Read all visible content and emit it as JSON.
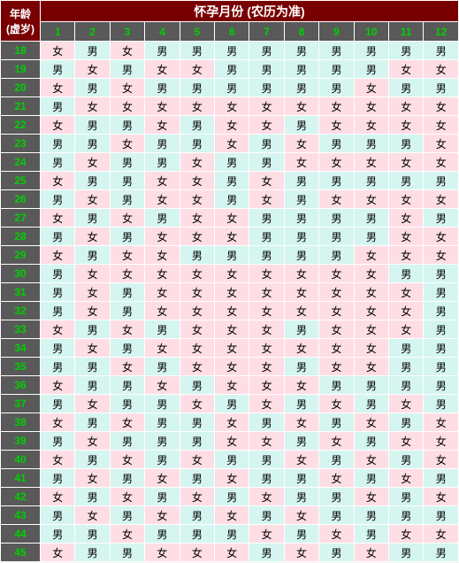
{
  "header": {
    "corner_line1": "年龄",
    "corner_line2": "(虚岁)",
    "top_title": "怀孕月份 (农历为准)"
  },
  "months": [
    "1",
    "2",
    "3",
    "4",
    "5",
    "6",
    "7",
    "8",
    "9",
    "10",
    "11",
    "12"
  ],
  "ages": [
    "18",
    "19",
    "20",
    "21",
    "22",
    "23",
    "24",
    "25",
    "26",
    "27",
    "28",
    "29",
    "30",
    "31",
    "32",
    "33",
    "34",
    "35",
    "36",
    "37",
    "38",
    "39",
    "40",
    "41",
    "42",
    "43",
    "44",
    "45"
  ],
  "label_female": "女",
  "label_male": "男",
  "colors": {
    "header_bg": "#790000",
    "header_fg": "#ffffff",
    "side_bg": "#595959",
    "side_fg": "#00d000",
    "female_bg": "#ffdde5",
    "male_bg": "#d5f5f0",
    "border": "#ffffff"
  },
  "grid": [
    [
      "女",
      "男",
      "女",
      "男",
      "男",
      "男",
      "男",
      "男",
      "男",
      "男",
      "男",
      "男"
    ],
    [
      "男",
      "女",
      "男",
      "女",
      "女",
      "男",
      "男",
      "男",
      "男",
      "男",
      "女",
      "女"
    ],
    [
      "女",
      "男",
      "女",
      "男",
      "男",
      "男",
      "男",
      "男",
      "男",
      "女",
      "男",
      "男"
    ],
    [
      "男",
      "女",
      "女",
      "女",
      "女",
      "女",
      "女",
      "女",
      "女",
      "女",
      "女",
      "女"
    ],
    [
      "女",
      "男",
      "男",
      "女",
      "男",
      "女",
      "女",
      "男",
      "女",
      "女",
      "女",
      "女"
    ],
    [
      "男",
      "男",
      "女",
      "男",
      "男",
      "女",
      "男",
      "女",
      "男",
      "男",
      "男",
      "女"
    ],
    [
      "男",
      "女",
      "男",
      "男",
      "女",
      "男",
      "男",
      "女",
      "女",
      "女",
      "女",
      "女"
    ],
    [
      "女",
      "男",
      "男",
      "女",
      "女",
      "男",
      "女",
      "男",
      "男",
      "男",
      "男",
      "男"
    ],
    [
      "男",
      "女",
      "男",
      "女",
      "女",
      "男",
      "女",
      "男",
      "女",
      "女",
      "女",
      "女"
    ],
    [
      "女",
      "男",
      "女",
      "男",
      "女",
      "女",
      "男",
      "男",
      "男",
      "男",
      "女",
      "男"
    ],
    [
      "男",
      "女",
      "男",
      "女",
      "女",
      "女",
      "男",
      "男",
      "男",
      "男",
      "女",
      "女"
    ],
    [
      "女",
      "男",
      "女",
      "女",
      "男",
      "男",
      "男",
      "男",
      "男",
      "女",
      "女",
      "女"
    ],
    [
      "男",
      "女",
      "女",
      "女",
      "女",
      "女",
      "女",
      "女",
      "女",
      "女",
      "男",
      "男"
    ],
    [
      "男",
      "女",
      "男",
      "女",
      "女",
      "女",
      "女",
      "女",
      "女",
      "女",
      "女",
      "男"
    ],
    [
      "男",
      "女",
      "男",
      "女",
      "女",
      "女",
      "女",
      "女",
      "女",
      "女",
      "女",
      "男"
    ],
    [
      "女",
      "男",
      "女",
      "男",
      "女",
      "女",
      "女",
      "男",
      "女",
      "女",
      "女",
      "男"
    ],
    [
      "男",
      "女",
      "男",
      "女",
      "女",
      "女",
      "女",
      "女",
      "女",
      "女",
      "男",
      "男"
    ],
    [
      "男",
      "男",
      "女",
      "男",
      "女",
      "女",
      "女",
      "男",
      "女",
      "女",
      "男",
      "男"
    ],
    [
      "女",
      "男",
      "男",
      "女",
      "男",
      "女",
      "女",
      "女",
      "男",
      "男",
      "男",
      "男"
    ],
    [
      "男",
      "女",
      "男",
      "男",
      "女",
      "男",
      "女",
      "男",
      "女",
      "男",
      "女",
      "男"
    ],
    [
      "女",
      "男",
      "女",
      "男",
      "男",
      "女",
      "男",
      "女",
      "男",
      "女",
      "男",
      "女"
    ],
    [
      "男",
      "女",
      "男",
      "男",
      "男",
      "女",
      "女",
      "男",
      "女",
      "男",
      "女",
      "女"
    ],
    [
      "女",
      "男",
      "女",
      "男",
      "女",
      "男",
      "男",
      "女",
      "男",
      "女",
      "男",
      "女"
    ],
    [
      "男",
      "女",
      "男",
      "女",
      "男",
      "女",
      "男",
      "男",
      "女",
      "男",
      "女",
      "男"
    ],
    [
      "女",
      "男",
      "女",
      "男",
      "女",
      "男",
      "女",
      "男",
      "男",
      "女",
      "男",
      "女"
    ],
    [
      "男",
      "女",
      "男",
      "女",
      "男",
      "女",
      "男",
      "女",
      "男",
      "男",
      "男",
      "男"
    ],
    [
      "男",
      "男",
      "女",
      "男",
      "男",
      "男",
      "女",
      "男",
      "女",
      "男",
      "女",
      "女"
    ],
    [
      "女",
      "男",
      "男",
      "女",
      "女",
      "女",
      "男",
      "女",
      "男",
      "女",
      "男",
      "男"
    ]
  ]
}
